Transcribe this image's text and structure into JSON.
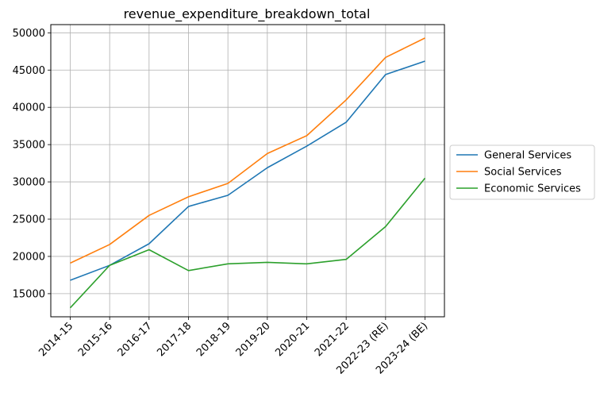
{
  "chart_data": {
    "type": "line",
    "title": "revenue_expenditure_breakdown_total",
    "xlabel": "",
    "ylabel": "",
    "categories": [
      "2014-15",
      "2015-16",
      "2016-17",
      "2017-18",
      "2018-19",
      "2019-20",
      "2020-21",
      "2021-22",
      "2022-23 (RE)",
      "2023-24 (BE)"
    ],
    "ylim": [
      11900,
      51100
    ],
    "yticks": [
      15000,
      20000,
      25000,
      30000,
      35000,
      40000,
      45000,
      50000
    ],
    "grid": true,
    "legend_position": "outside-right",
    "series": [
      {
        "name": "General Services",
        "color": "#1f77b4",
        "values": [
          16800,
          18800,
          21700,
          26700,
          28200,
          31900,
          34800,
          38000,
          44400,
          46200
        ]
      },
      {
        "name": "Social Services",
        "color": "#ff7f0e",
        "values": [
          19100,
          21600,
          25500,
          28000,
          29800,
          33800,
          36200,
          41000,
          46700,
          49300
        ]
      },
      {
        "name": "Economic Services",
        "color": "#2ca02c",
        "values": [
          13100,
          18800,
          20900,
          18100,
          19000,
          19200,
          19000,
          19600,
          24000,
          30500
        ]
      }
    ]
  }
}
